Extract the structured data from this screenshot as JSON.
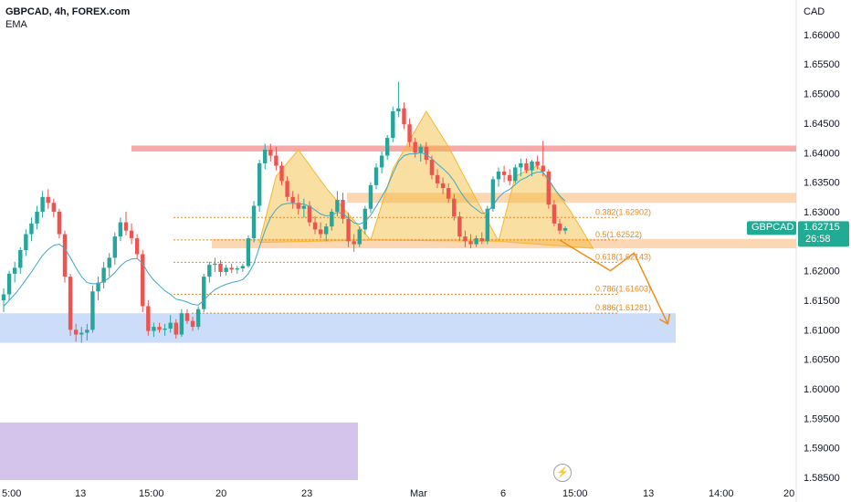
{
  "header": {
    "symbol_line": "GBPCAD, 4h, FOREX.com",
    "indicator": "EMA"
  },
  "axis": {
    "currency": "CAD",
    "x_ticks": [
      "5:00",
      "13",
      "15:00",
      "20",
      "23",
      "Mar",
      "6",
      "15:00",
      "13",
      "14:00",
      "20"
    ],
    "y_min": 1.583,
    "y_max": 1.664
  },
  "price_badge": {
    "label": "GBPCAD",
    "price": "1.62715",
    "countdown": "26:58",
    "value": 1.62715,
    "color": "#22ab94"
  },
  "colors": {
    "up": "#26a69a",
    "down": "#ef5350",
    "ema": "#3fa7c4",
    "pattern_fill": "#f5b731",
    "fib": "#e08a2b",
    "resistance": "#f7a8a8",
    "support": "#a9c6f5",
    "neckline": "#f9c99a",
    "purple": "#d4c4ec",
    "projection": "#f08c1e"
  },
  "chart_data": {
    "type": "candlestick",
    "title": "GBPCAD, 4h, FOREX.com",
    "ylabel": "CAD",
    "ylim": [
      1.583,
      1.664
    ],
    "y_ticks": [
      1.585,
      1.59,
      1.595,
      1.6,
      1.605,
      1.61,
      1.615,
      1.62,
      1.625,
      1.63,
      1.635,
      1.64,
      1.645,
      1.65,
      1.655,
      1.66
    ],
    "y_tick_labels": [
      "1.58500",
      "1.59000",
      "1.59500",
      "1.60000",
      "1.60500",
      "1.61000",
      "1.61500",
      "1.62000",
      "1.62500",
      "1.63000",
      "1.63500",
      "1.64000",
      "1.64500",
      "1.65000",
      "1.65500",
      "1.66000"
    ],
    "fib_levels": [
      {
        "label": "0.382(1.62902)",
        "value": 1.62902
      },
      {
        "label": "0.5(1.62522)",
        "value": 1.62522
      },
      {
        "label": "0.618(1.62143)",
        "value": 1.62143
      },
      {
        "label": "0.786(1.61603)",
        "value": 1.61603
      },
      {
        "label": "0.886(1.61281)",
        "value": 1.61281
      }
    ],
    "zones": [
      {
        "name": "resistance",
        "from": 1.6402,
        "to": 1.6412
      },
      {
        "name": "neckline-zone",
        "from": 1.6238,
        "to": 1.6254
      },
      {
        "name": "upper-orange-zone",
        "from": 1.6315,
        "to": 1.6332
      },
      {
        "name": "support",
        "from": 1.6078,
        "to": 1.6128
      },
      {
        "name": "purple-zone",
        "from": 1.583,
        "to": 1.5943
      }
    ],
    "candles": [
      [
        1.615,
        1.617,
        1.613,
        1.616
      ],
      [
        1.616,
        1.62,
        1.615,
        1.6195
      ],
      [
        1.6195,
        1.6215,
        1.618,
        1.6205
      ],
      [
        1.6205,
        1.624,
        1.6195,
        1.6235
      ],
      [
        1.6235,
        1.627,
        1.6225,
        1.6262
      ],
      [
        1.6262,
        1.629,
        1.625,
        1.628
      ],
      [
        1.628,
        1.631,
        1.627,
        1.63
      ],
      [
        1.63,
        1.6335,
        1.629,
        1.6325
      ],
      [
        1.6325,
        1.6338,
        1.6305,
        1.6315
      ],
      [
        1.6315,
        1.6322,
        1.629,
        1.63
      ],
      [
        1.63,
        1.6305,
        1.6255,
        1.6262
      ],
      [
        1.6262,
        1.6268,
        1.618,
        1.619
      ],
      [
        1.619,
        1.6195,
        1.609,
        1.61
      ],
      [
        1.61,
        1.611,
        1.608,
        1.6092
      ],
      [
        1.6092,
        1.6105,
        1.6078,
        1.6095
      ],
      [
        1.6095,
        1.611,
        1.6082,
        1.61
      ],
      [
        1.61,
        1.6175,
        1.6095,
        1.6165
      ],
      [
        1.6165,
        1.619,
        1.615,
        1.618
      ],
      [
        1.618,
        1.6215,
        1.617,
        1.6205
      ],
      [
        1.6205,
        1.623,
        1.619,
        1.6222
      ],
      [
        1.6222,
        1.6265,
        1.621,
        1.6258
      ],
      [
        1.6258,
        1.629,
        1.625,
        1.6282
      ],
      [
        1.6282,
        1.63,
        1.626,
        1.6268
      ],
      [
        1.6268,
        1.628,
        1.6245,
        1.6255
      ],
      [
        1.6255,
        1.6262,
        1.622,
        1.6228
      ],
      [
        1.6228,
        1.6235,
        1.613,
        1.614
      ],
      [
        1.614,
        1.615,
        1.609,
        1.6098
      ],
      [
        1.6098,
        1.6112,
        1.6088,
        1.6105
      ],
      [
        1.6105,
        1.6112,
        1.6095,
        1.61
      ],
      [
        1.61,
        1.611,
        1.609,
        1.6102
      ],
      [
        1.6102,
        1.6125,
        1.6095,
        1.6112
      ],
      [
        1.6112,
        1.6118,
        1.6085,
        1.6092
      ],
      [
        1.6092,
        1.6135,
        1.6088,
        1.6128
      ],
      [
        1.6128,
        1.6135,
        1.611,
        1.6115
      ],
      [
        1.6115,
        1.6122,
        1.6098,
        1.6105
      ],
      [
        1.6105,
        1.614,
        1.61,
        1.6135
      ],
      [
        1.6135,
        1.6195,
        1.613,
        1.619
      ],
      [
        1.619,
        1.6215,
        1.618,
        1.621
      ],
      [
        1.621,
        1.6222,
        1.6198,
        1.6212
      ],
      [
        1.6212,
        1.6218,
        1.619,
        1.6198
      ],
      [
        1.6198,
        1.621,
        1.6192,
        1.6205
      ],
      [
        1.6205,
        1.6212,
        1.6196,
        1.6202
      ],
      [
        1.6202,
        1.6208,
        1.6195,
        1.6204
      ],
      [
        1.6204,
        1.6212,
        1.6198,
        1.6208
      ],
      [
        1.6208,
        1.626,
        1.6205,
        1.6255
      ],
      [
        1.6255,
        1.6318,
        1.6248,
        1.631
      ],
      [
        1.631,
        1.6388,
        1.63,
        1.6382
      ],
      [
        1.6382,
        1.6415,
        1.6372,
        1.6405
      ],
      [
        1.6405,
        1.6415,
        1.6385,
        1.6395
      ],
      [
        1.6395,
        1.641,
        1.637,
        1.6378
      ],
      [
        1.6378,
        1.6385,
        1.6345,
        1.6352
      ],
      [
        1.6352,
        1.636,
        1.6318,
        1.6325
      ],
      [
        1.6325,
        1.6335,
        1.6305,
        1.6315
      ],
      [
        1.6315,
        1.633,
        1.6295,
        1.6305
      ],
      [
        1.6305,
        1.6322,
        1.629,
        1.631
      ],
      [
        1.631,
        1.6318,
        1.6275,
        1.6282
      ],
      [
        1.6282,
        1.6292,
        1.6262,
        1.627
      ],
      [
        1.627,
        1.6282,
        1.6255,
        1.6262
      ],
      [
        1.6262,
        1.628,
        1.625,
        1.6275
      ],
      [
        1.6275,
        1.6305,
        1.6268,
        1.63
      ],
      [
        1.63,
        1.6335,
        1.6292,
        1.632
      ],
      [
        1.632,
        1.6332,
        1.628,
        1.6288
      ],
      [
        1.6288,
        1.6298,
        1.624,
        1.625
      ],
      [
        1.625,
        1.6262,
        1.6232,
        1.6245
      ],
      [
        1.6245,
        1.6275,
        1.624,
        1.627
      ],
      [
        1.627,
        1.631,
        1.6262,
        1.6305
      ],
      [
        1.6305,
        1.635,
        1.6298,
        1.6345
      ],
      [
        1.6345,
        1.6382,
        1.6338,
        1.6375
      ],
      [
        1.6375,
        1.6402,
        1.6365,
        1.6395
      ],
      [
        1.6395,
        1.643,
        1.6388,
        1.6425
      ],
      [
        1.6425,
        1.6478,
        1.6418,
        1.647
      ],
      [
        1.647,
        1.652,
        1.646,
        1.6475
      ],
      [
        1.6475,
        1.6485,
        1.644,
        1.6448
      ],
      [
        1.6448,
        1.6458,
        1.641,
        1.6418
      ],
      [
        1.6418,
        1.6425,
        1.6392,
        1.64
      ],
      [
        1.64,
        1.6415,
        1.6385,
        1.641
      ],
      [
        1.641,
        1.6418,
        1.638,
        1.6388
      ],
      [
        1.6388,
        1.6395,
        1.6355,
        1.6362
      ],
      [
        1.6362,
        1.6372,
        1.634,
        1.6348
      ],
      [
        1.6348,
        1.6358,
        1.633,
        1.634
      ],
      [
        1.634,
        1.6348,
        1.6315,
        1.6322
      ],
      [
        1.6322,
        1.633,
        1.6285,
        1.6292
      ],
      [
        1.6292,
        1.63,
        1.625,
        1.6258
      ],
      [
        1.6258,
        1.6268,
        1.624,
        1.625
      ],
      [
        1.625,
        1.6262,
        1.6238,
        1.6245
      ],
      [
        1.6245,
        1.626,
        1.624,
        1.6255
      ],
      [
        1.6255,
        1.6265,
        1.6245,
        1.625
      ],
      [
        1.625,
        1.631,
        1.6245,
        1.6305
      ],
      [
        1.6305,
        1.636,
        1.63,
        1.6355
      ],
      [
        1.6355,
        1.6375,
        1.6342,
        1.6368
      ],
      [
        1.6368,
        1.6378,
        1.635,
        1.6362
      ],
      [
        1.6362,
        1.6372,
        1.6345,
        1.6352
      ],
      [
        1.6352,
        1.638,
        1.6348,
        1.6375
      ],
      [
        1.6375,
        1.639,
        1.636,
        1.6382
      ],
      [
        1.6382,
        1.639,
        1.6365,
        1.637
      ],
      [
        1.637,
        1.6388,
        1.636,
        1.6385
      ],
      [
        1.6385,
        1.6395,
        1.6372,
        1.6378
      ],
      [
        1.6378,
        1.642,
        1.636,
        1.6368
      ],
      [
        1.6368,
        1.6372,
        1.6305,
        1.6312
      ],
      [
        1.6312,
        1.632,
        1.6275,
        1.628
      ],
      [
        1.628,
        1.6288,
        1.6262,
        1.6268
      ],
      [
        1.6268,
        1.6275,
        1.6262,
        1.6272
      ]
    ],
    "ema": [
      1.614,
      1.615,
      1.616,
      1.6172,
      1.6185,
      1.6198,
      1.6212,
      1.6226,
      1.6236,
      1.6243,
      1.6245,
      1.6238,
      1.6222,
      1.6205,
      1.619,
      1.618,
      1.6178,
      1.6178,
      1.6182,
      1.6188,
      1.6197,
      1.6208,
      1.6216,
      1.622,
      1.6221,
      1.6212,
      1.6196,
      1.6184,
      1.6175,
      1.6166,
      1.616,
      1.6152,
      1.615,
      1.6147,
      1.6143,
      1.6142,
      1.615,
      1.616,
      1.6168,
      1.6173,
      1.6177,
      1.618,
      1.6182,
      1.6185,
      1.6195,
      1.6212,
      1.624,
      1.6268,
      1.629,
      1.6304,
      1.6312,
      1.6314,
      1.6314,
      1.6313,
      1.6313,
      1.6309,
      1.6303,
      1.6296,
      1.6293,
      1.6294,
      1.6299,
      1.6297,
      1.6289,
      1.6281,
      1.6279,
      1.6283,
      1.6294,
      1.6309,
      1.6325,
      1.6342,
      1.6365,
      1.6385,
      1.6395,
      1.6398,
      1.6398,
      1.64,
      1.6397,
      1.639,
      1.6381,
      1.6373,
      1.6364,
      1.6352,
      1.6336,
      1.6322,
      1.6311,
      1.6304,
      1.6297,
      1.6299,
      1.6311,
      1.6324,
      1.6333,
      1.6338,
      1.6346,
      1.6354,
      1.6358,
      1.6364,
      1.6367,
      1.6367,
      1.6355,
      1.634,
      1.6327,
      1.6318
    ],
    "pattern_polygons": [
      [
        [
          0,
          1.6248
        ],
        [
          3,
          1.636
        ],
        [
          7,
          1.6405
        ],
        [
          12,
          1.634
        ],
        [
          20,
          1.6252
        ]
      ],
      [
        [
          20,
          1.6252
        ],
        [
          24,
          1.6372
        ],
        [
          30,
          1.647
        ],
        [
          34,
          1.641
        ],
        [
          43,
          1.625
        ]
      ],
      [
        [
          43,
          1.625
        ],
        [
          46,
          1.636
        ],
        [
          50,
          1.6378
        ],
        [
          56,
          1.63
        ],
        [
          60,
          1.6238
        ]
      ]
    ],
    "projection": [
      [
        0,
        1.6252
      ],
      [
        15,
        1.62
      ],
      [
        22,
        1.623
      ],
      [
        32,
        1.611
      ]
    ]
  }
}
